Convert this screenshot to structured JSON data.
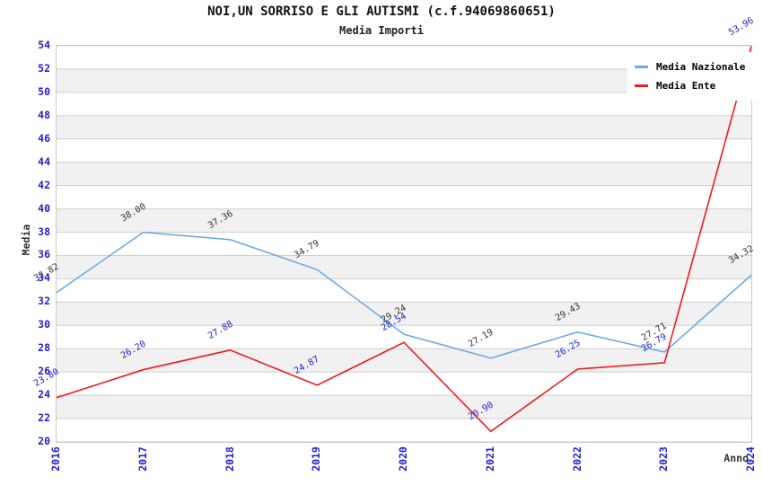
{
  "header": {
    "title": "NOI,UN SORRISO E GLI AUTISMI (c.f.94069860651)",
    "subtitle": "Media Importi"
  },
  "axes": {
    "y_label": "Media",
    "x_label": "Anno",
    "y_ticks": [
      20,
      22,
      24,
      26,
      28,
      30,
      32,
      34,
      36,
      38,
      40,
      42,
      44,
      46,
      48,
      50,
      52,
      54
    ],
    "x_ticks": [
      "2016",
      "2017",
      "2018",
      "2019",
      "2020",
      "2021",
      "2022",
      "2023",
      "2024"
    ]
  },
  "legend": {
    "items": [
      {
        "label": "Media Nazionale",
        "color": "#6cabe4"
      },
      {
        "label": "Media Ente",
        "color": "#ee1c1c"
      }
    ]
  },
  "chart_data": {
    "type": "line",
    "title": "NOI,UN SORRISO E GLI AUTISMI (c.f.94069860651)",
    "subtitle": "Media Importi",
    "xlabel": "Anno",
    "ylabel": "Media",
    "x": [
      "2016",
      "2017",
      "2018",
      "2019",
      "2020",
      "2021",
      "2022",
      "2023",
      "2024"
    ],
    "series": [
      {
        "name": "Media Nazionale",
        "color": "#6cabe4",
        "label_color": "#333333",
        "values": [
          32.82,
          38.0,
          37.36,
          34.79,
          29.24,
          27.19,
          29.43,
          27.71,
          34.32
        ]
      },
      {
        "name": "Media Ente",
        "color": "#ee1c1c",
        "label_color": "#2222cc",
        "values": [
          23.8,
          26.2,
          27.88,
          24.87,
          28.54,
          20.9,
          26.25,
          26.79,
          53.96
        ]
      }
    ],
    "ylim": [
      20,
      54
    ],
    "grid": true,
    "legend_position": "top-right",
    "band_colors": {
      "base": "#ffffff",
      "alt": "#f1f1f1"
    },
    "grid_color": "#cfcfcf",
    "tick_color": "#2222cc"
  }
}
